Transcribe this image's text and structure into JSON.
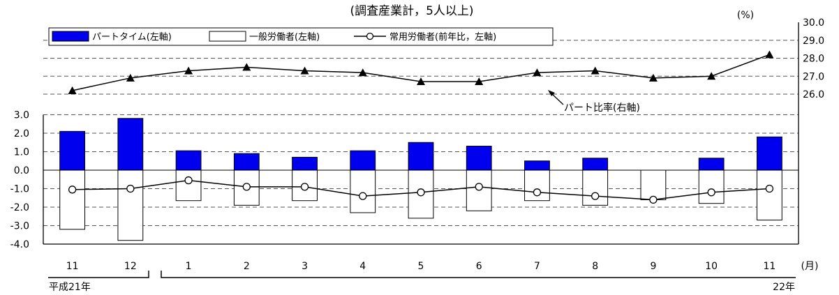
{
  "chart_data": {
    "type": "bar",
    "title": "(調査産業計，5人以上)",
    "unit_right": "(%)",
    "unit_x": "(月)",
    "categories": [
      "11",
      "12",
      "1",
      "2",
      "3",
      "4",
      "5",
      "6",
      "7",
      "8",
      "9",
      "10",
      "11"
    ],
    "year_labels": {
      "left": "平成21年",
      "right": "22年"
    },
    "y_left": {
      "ylim": [
        -4.0,
        3.0
      ],
      "ticks": [
        "3.0",
        "2.0",
        "1.0",
        "0.0",
        "-1.0",
        "-2.0",
        "-3.0",
        "-4.0"
      ]
    },
    "y_right": {
      "ylim": [
        26.0,
        30.0
      ],
      "ticks": [
        "30.0",
        "29.0",
        "28.0",
        "27.0",
        "26.0"
      ]
    },
    "grid": true,
    "legend_position": "top-left",
    "series": [
      {
        "name": "パートタイム(左軸)",
        "kind": "bar",
        "axis": "left",
        "color": "#0000ee",
        "values": [
          2.1,
          2.8,
          1.05,
          0.9,
          0.7,
          1.05,
          1.5,
          1.3,
          0.5,
          0.65,
          -0.05,
          0.65,
          1.8
        ]
      },
      {
        "name": "一般労働者(左軸)",
        "kind": "bar",
        "axis": "left",
        "color": "#ffffff",
        "values": [
          -3.2,
          -3.8,
          -1.65,
          -1.9,
          -1.65,
          -2.3,
          -2.6,
          -2.2,
          -1.65,
          -1.9,
          -1.6,
          -1.8,
          -2.7
        ]
      },
      {
        "name": "常用労働者(前年比，左軸)",
        "kind": "line",
        "marker": "circle",
        "axis": "left",
        "values": [
          -1.05,
          -1.0,
          -0.55,
          -0.9,
          -0.9,
          -1.4,
          -1.2,
          -0.9,
          -1.2,
          -1.4,
          -1.6,
          -1.2,
          -1.0
        ]
      },
      {
        "name": "パート比率",
        "kind": "line",
        "marker": "triangle",
        "axis": "right",
        "values": [
          26.2,
          26.9,
          27.3,
          27.5,
          27.3,
          27.2,
          26.7,
          26.7,
          27.2,
          27.3,
          26.9,
          27.0,
          28.2
        ]
      }
    ],
    "annotation": "パート比率(右軸)"
  }
}
